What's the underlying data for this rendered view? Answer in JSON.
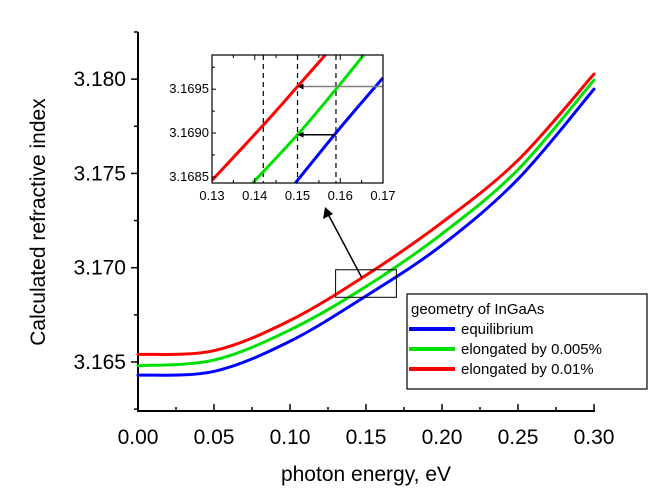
{
  "chart_data": {
    "type": "line",
    "title": "",
    "xlabel": "photon energy, eV",
    "ylabel": "Calculated refractive index",
    "xlim": [
      0.0,
      0.3
    ],
    "ylim": [
      3.1624,
      3.1825
    ],
    "xticks": [
      "0.00",
      "0.05",
      "0.10",
      "0.15",
      "0.20",
      "0.25",
      "0.30"
    ],
    "xtick_values": [
      0.0,
      0.05,
      0.1,
      0.15,
      0.2,
      0.25,
      0.3
    ],
    "yticks": [
      "3.165",
      "3.170",
      "3.175",
      "3.180"
    ],
    "ytick_values": [
      3.165,
      3.17,
      3.175,
      3.18
    ],
    "grid": false,
    "legend": {
      "title": "geometry of InGaAs",
      "placement": "bottom-right"
    },
    "x": [
      0.0,
      0.05,
      0.1,
      0.15,
      0.2,
      0.25,
      0.3
    ],
    "series": [
      {
        "name": "equilibrium",
        "color": "#0000ff",
        "values": [
          3.1643,
          3.1645,
          3.1661,
          3.1685,
          3.1712,
          3.1747,
          3.17947
        ]
      },
      {
        "name": "elongated by 0.005%",
        "color": "#00e000",
        "values": [
          3.1648,
          3.1651,
          3.1667,
          3.169,
          3.1718,
          3.1752,
          3.17995
        ]
      },
      {
        "name": "elongated by 0.01%",
        "color": "#ff0000",
        "values": [
          3.1654,
          3.1656,
          3.1672,
          3.1696,
          3.1724,
          3.1757,
          3.18027
        ]
      }
    ],
    "zoom_box": {
      "xlim": [
        0.13,
        0.17
      ],
      "ylim": [
        3.16843,
        3.16989
      ]
    },
    "inset": {
      "xlim": [
        0.13,
        0.17
      ],
      "ylim": [
        3.16843,
        3.16989
      ],
      "xticks": [
        "0.13",
        "0.14",
        "0.15",
        "0.16",
        "0.17"
      ],
      "xtick_values": [
        0.13,
        0.14,
        0.15,
        0.16,
        0.17
      ],
      "yticks": [
        "3.1685",
        "3.1690",
        "3.1695"
      ],
      "ytick_values": [
        3.1685,
        3.169,
        3.1695
      ],
      "series": [
        {
          "name": "equilibrium",
          "color": "#0000ff",
          "points": [
            [
              0.1495,
              3.16843
            ],
            [
              0.16,
              3.16906
            ],
            [
              0.17,
              3.16963
            ]
          ]
        },
        {
          "name": "elongated by 0.005%",
          "color": "#00e000",
          "points": [
            [
              0.1395,
              3.16843
            ],
            [
              0.15,
              3.16898
            ],
            [
              0.159,
              3.1695
            ],
            [
              0.1655,
              3.16989
            ]
          ]
        },
        {
          "name": "elongated by 0.01%",
          "color": "#ff0000",
          "points": [
            [
              0.13,
              3.16846
            ],
            [
              0.1418,
              3.16908
            ],
            [
              0.15,
              3.16953
            ],
            [
              0.1565,
              3.16989
            ]
          ]
        }
      ],
      "dashed_vlines": [
        0.142,
        0.15,
        0.159
      ],
      "arrows": [
        {
          "from": [
            0.17,
            3.16953
          ],
          "to": [
            0.15,
            3.16953
          ],
          "color": "#808080"
        },
        {
          "from": [
            0.159,
            3.16898
          ],
          "to": [
            0.15,
            3.16898
          ],
          "color": "#000000"
        }
      ]
    }
  }
}
